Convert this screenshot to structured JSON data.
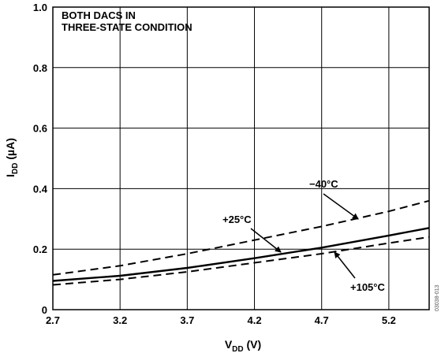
{
  "chart_data": {
    "type": "line",
    "title": "",
    "annotation_lines": [
      "BOTH DACS IN",
      "THREE-STATE CONDITION"
    ],
    "xlabel": {
      "main": "V",
      "sub": "DD",
      "unit": " (V)"
    },
    "ylabel": {
      "main": "I",
      "sub": "DD",
      "unit": " (µA)"
    },
    "xlim": [
      2.7,
      5.5
    ],
    "ylim": [
      0,
      1.0
    ],
    "x_ticks": [
      "2.7",
      "3.2",
      "3.7",
      "4.2",
      "4.7",
      "5.2"
    ],
    "x_tick_values": [
      2.7,
      3.2,
      3.7,
      4.2,
      4.7,
      5.2
    ],
    "y_ticks": [
      "0",
      "0.2",
      "0.4",
      "0.6",
      "0.8",
      "1.0"
    ],
    "y_tick_values": [
      0,
      0.2,
      0.4,
      0.6,
      0.8,
      1.0
    ],
    "grid": true,
    "series": [
      {
        "name": "−40°C",
        "style": "dashed",
        "x": [
          2.7,
          3.2,
          3.7,
          4.2,
          4.7,
          5.2,
          5.5
        ],
        "y": [
          0.115,
          0.145,
          0.185,
          0.23,
          0.275,
          0.325,
          0.36
        ]
      },
      {
        "name": "+25°C",
        "style": "solid",
        "x": [
          2.7,
          3.2,
          3.7,
          4.2,
          4.7,
          5.2,
          5.5
        ],
        "y": [
          0.095,
          0.112,
          0.138,
          0.17,
          0.205,
          0.245,
          0.27
        ]
      },
      {
        "name": "+105°C",
        "style": "dashed",
        "x": [
          2.7,
          3.2,
          3.7,
          4.2,
          4.7,
          5.2,
          5.5
        ],
        "y": [
          0.082,
          0.1,
          0.125,
          0.155,
          0.185,
          0.22,
          0.24
        ]
      }
    ],
    "side_code": "03038-013"
  }
}
